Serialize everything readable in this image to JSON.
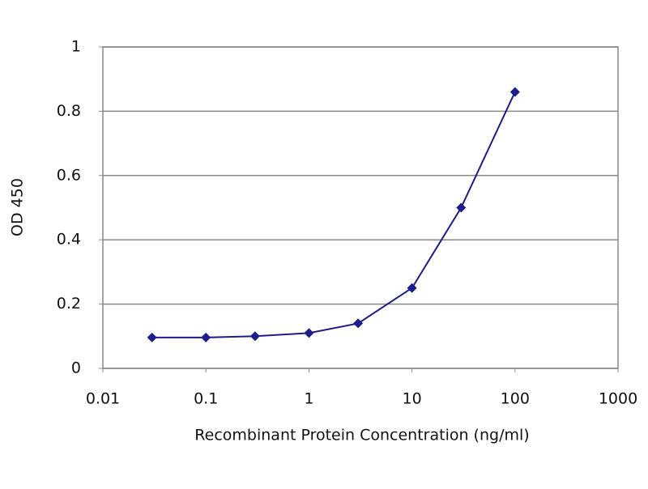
{
  "chart_data": {
    "type": "line",
    "xlabel": "Recombinant Protein Concentration (ng/ml)",
    "ylabel": "OD 450",
    "x": [
      0.03,
      0.1,
      0.3,
      1,
      3,
      10,
      30,
      100
    ],
    "values": [
      0.096,
      0.096,
      0.1,
      0.11,
      0.14,
      0.25,
      0.5,
      0.86
    ],
    "color": "#1c1c8a",
    "xscale": "log",
    "xlim": [
      0.01,
      1000
    ],
    "xticks": [
      0.01,
      0.1,
      1,
      10,
      100,
      1000
    ],
    "ylim": [
      0,
      1
    ],
    "yticks": [
      0,
      0.2,
      0.4,
      0.6,
      0.8,
      1
    ],
    "grid": true
  }
}
